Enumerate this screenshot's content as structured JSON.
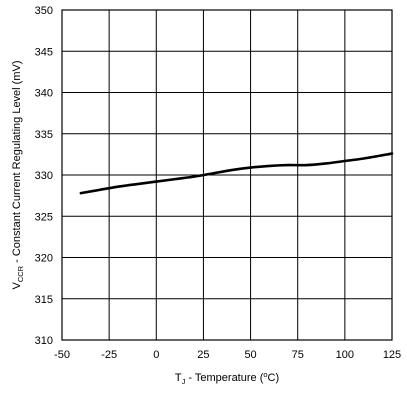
{
  "chart_data": {
    "type": "line",
    "title": "",
    "xlabel": {
      "prefix": "T",
      "subscript": "J",
      "suffix": " - Temperature (",
      "superscript": "o",
      "unit": "C)"
    },
    "ylabel": {
      "prefix": "V",
      "subscript": "CCR",
      "suffix": " - Constant Current Regulating Level (mV)"
    },
    "xlim": [
      -50,
      125
    ],
    "ylim": [
      310,
      350
    ],
    "xticks": [
      -50,
      -25,
      0,
      25,
      50,
      75,
      100,
      125
    ],
    "yticks": [
      310,
      315,
      320,
      325,
      330,
      335,
      340,
      345,
      350
    ],
    "xtick_labels": [
      "-50",
      "-25",
      "0",
      "25",
      "50",
      "75",
      "100",
      "125"
    ],
    "ytick_labels": [
      "310",
      "315",
      "320",
      "325",
      "330",
      "335",
      "340",
      "345",
      "350"
    ],
    "grid": true,
    "series": [
      {
        "x": [
          -40,
          -30,
          -20,
          -10,
          0,
          10,
          20,
          30,
          40,
          50,
          60,
          70,
          80,
          90,
          100,
          110,
          125
        ],
        "y": [
          327.8,
          328.2,
          328.6,
          328.9,
          329.2,
          329.5,
          329.8,
          330.2,
          330.6,
          330.9,
          331.1,
          331.2,
          331.2,
          331.4,
          331.7,
          332.0,
          332.6
        ]
      }
    ]
  }
}
